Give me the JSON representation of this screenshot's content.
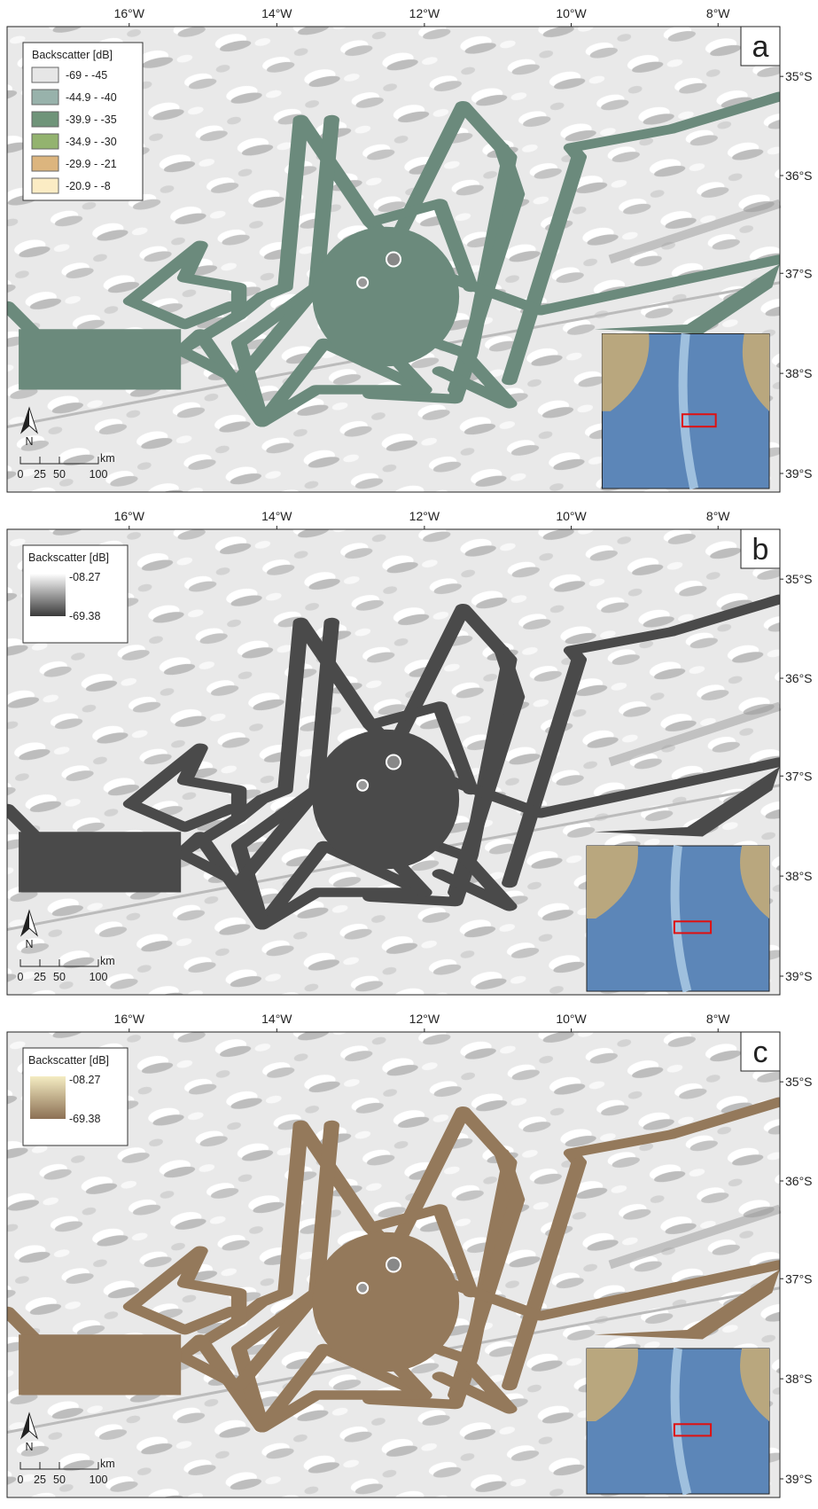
{
  "lon_labels": [
    "16°W",
    "14°W",
    "12°W",
    "10°W",
    "8°W"
  ],
  "lat_labels": [
    "35°S",
    "36°S",
    "37°S",
    "38°S",
    "39°S"
  ],
  "scale_bar": {
    "labels": [
      "0",
      "25",
      "50",
      "100"
    ],
    "unit": "km"
  },
  "north": "N",
  "panels": [
    {
      "letter": "a",
      "track_color": "#6b8a7c",
      "legend": {
        "title": "Backscatter [dB]",
        "items": [
          {
            "label": "-69 - -45",
            "color": "#e6e6e6"
          },
          {
            "label": "-44.9 - -40",
            "color": "#98b2ab"
          },
          {
            "label": "-39.9 - -35",
            "color": "#6f9479"
          },
          {
            "label": "-34.9 - -30",
            "color": "#93b36f"
          },
          {
            "label": "-29.9 - -21",
            "color": "#dcb57e"
          },
          {
            "label": "-20.9 - -8",
            "color": "#fbecc4"
          }
        ]
      }
    },
    {
      "letter": "b",
      "track_color": "#4a4a4a",
      "legend": {
        "title": "Backscatter [dB]",
        "max_label": "-08.27",
        "min_label": "-69.38",
        "colors": [
          "#ffffff",
          "#3a3a3a"
        ]
      }
    },
    {
      "letter": "c",
      "track_color": "#94795b",
      "legend": {
        "title": "Backscatter [dB]",
        "max_label": "-08.27",
        "min_label": "-69.38",
        "colors": [
          "#f4ecc2",
          "#8c7054"
        ]
      }
    }
  ]
}
